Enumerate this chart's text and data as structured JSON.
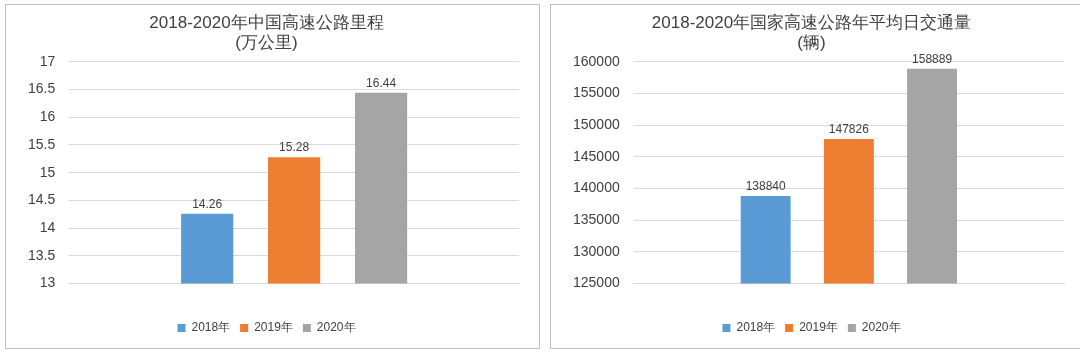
{
  "chart_data": [
    {
      "type": "bar",
      "title": "2018-2020年中国高速公路里程\n(万公里)",
      "categories": [
        null
      ],
      "series": [
        {
          "name": "2018年",
          "color": "#5b9bd5",
          "values": [
            14.26
          ]
        },
        {
          "name": "2019年",
          "color": "#ed7d31",
          "values": [
            15.28
          ]
        },
        {
          "name": "2020年",
          "color": "#a5a5a5",
          "values": [
            16.44
          ]
        }
      ],
      "ylim": [
        13,
        17
      ],
      "yticks": [
        13,
        13.5,
        14,
        14.5,
        15,
        15.5,
        16,
        16.5,
        17
      ],
      "grid": "y",
      "legend": "bottom",
      "data_labels": true
    },
    {
      "type": "bar",
      "title": "2018-2020年国家高速公路年平均日交通量\n(辆)",
      "categories": [
        null
      ],
      "series": [
        {
          "name": "2018年",
          "color": "#5b9bd5",
          "values": [
            138840
          ]
        },
        {
          "name": "2019年",
          "color": "#ed7d31",
          "values": [
            147826
          ]
        },
        {
          "name": "2020年",
          "color": "#a5a5a5",
          "values": [
            158889
          ]
        }
      ],
      "ylim": [
        125000,
        160000
      ],
      "yticks": [
        125000,
        130000,
        135000,
        140000,
        145000,
        150000,
        155000,
        160000
      ],
      "grid": "y",
      "legend": "bottom",
      "data_labels": true
    }
  ]
}
